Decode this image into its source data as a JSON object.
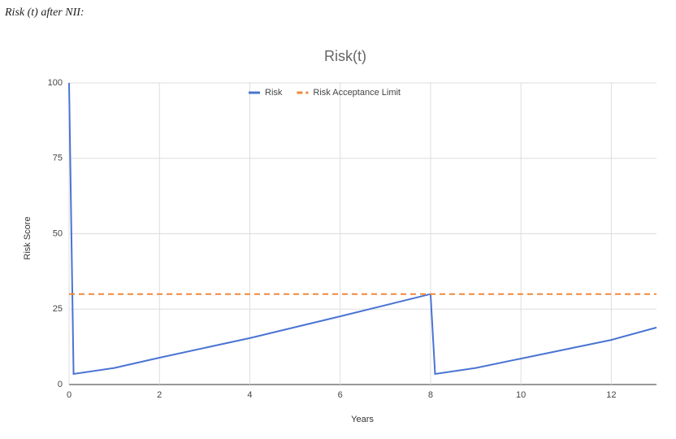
{
  "caption": "Risk (t) after NII:",
  "chart_data": {
    "type": "line",
    "title": "Risk(t)",
    "x_label": "Years",
    "y_label": "Risk Score",
    "series": [
      {
        "name": "Risk",
        "color": "#4a74d3",
        "dash": false,
        "x": [
          0,
          0.1,
          1,
          2,
          4,
          6,
          8,
          8.1,
          9,
          10,
          12,
          13
        ],
        "values": [
          100,
          3.5,
          5.5,
          8.9,
          15.4,
          22.6,
          30,
          3.5,
          5.5,
          8.6,
          14.8,
          18.9
        ]
      },
      {
        "name": "Risk Acceptance Limit",
        "color": "#f0883c",
        "dash": true,
        "x": [
          0,
          13
        ],
        "values": [
          30,
          30
        ]
      }
    ],
    "xlim": [
      0,
      13
    ],
    "xticks": [
      0,
      2,
      4,
      6,
      8,
      10,
      12
    ],
    "ylim": [
      0,
      100
    ],
    "yticks": [
      0,
      25,
      50,
      75,
      100
    ],
    "grid": true,
    "legend": "top"
  }
}
